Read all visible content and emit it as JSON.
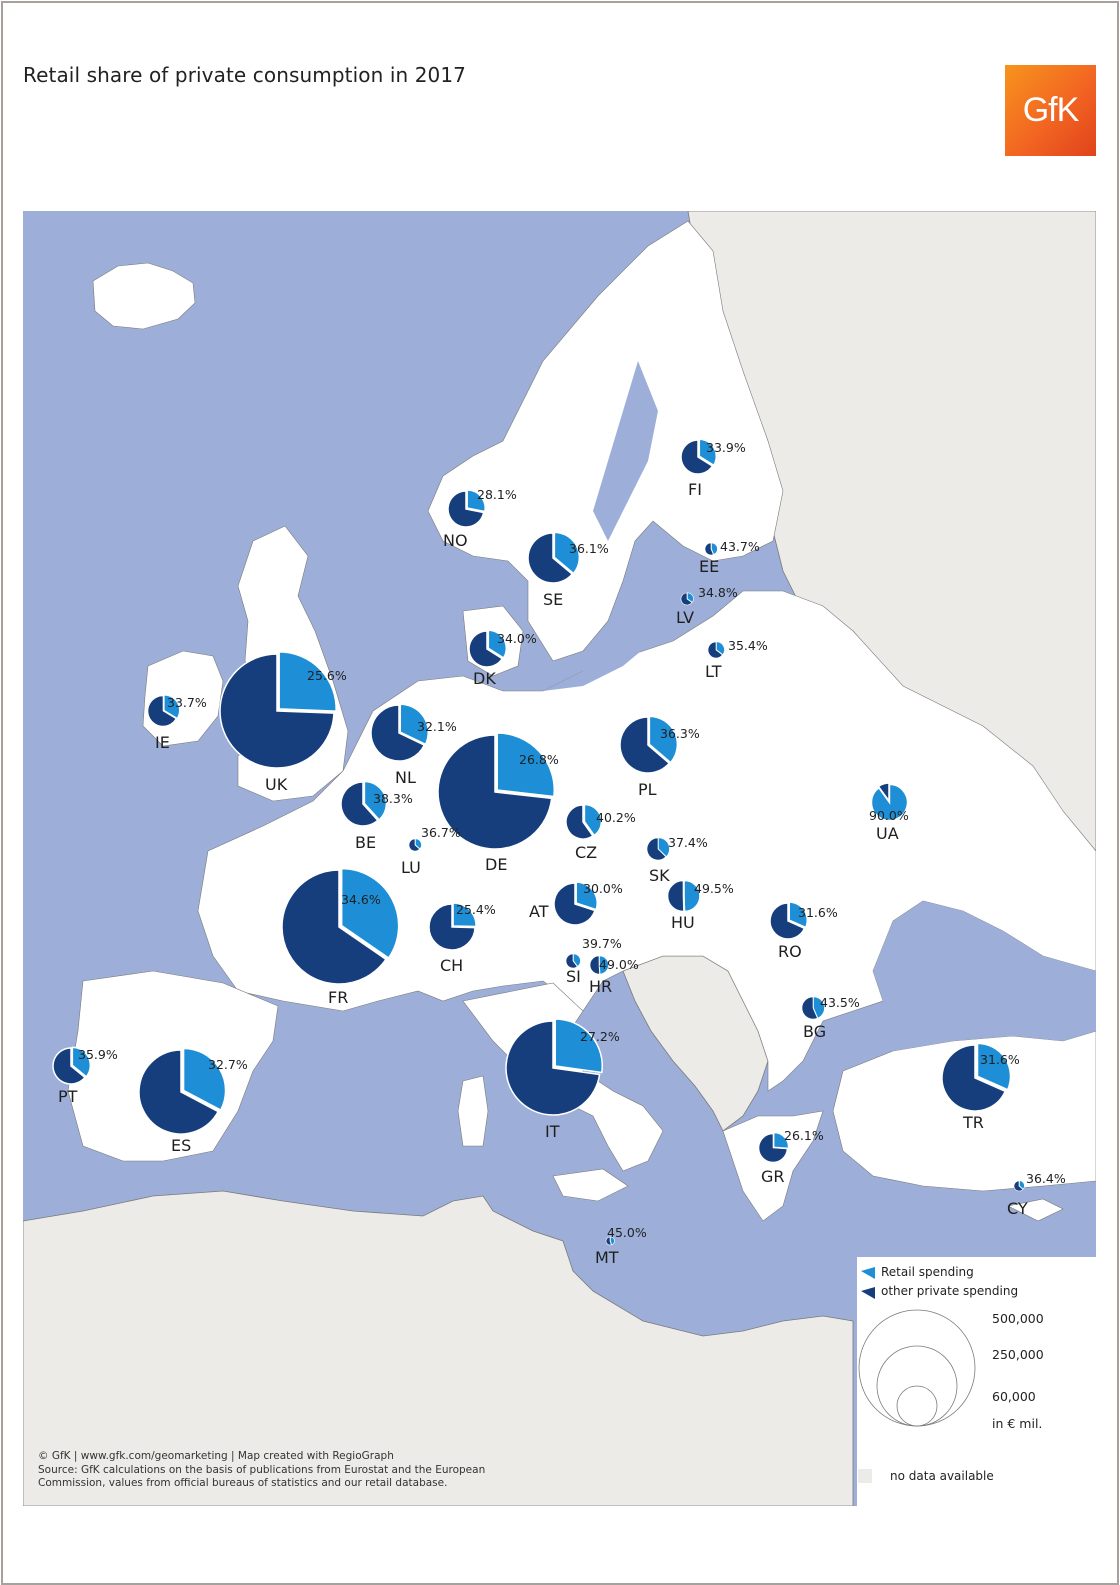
{
  "title": "Retail share of private consumption in 2017",
  "logo": {
    "text": "GfK"
  },
  "colors": {
    "sea": "#9dafd9",
    "land": "#ffffff",
    "nodata_land": "#ecebe8",
    "retail": "#1e8fd6",
    "other": "#163e7d",
    "border": "#7a7a7a"
  },
  "legend": {
    "retail_label": "Retail spending",
    "other_label": "other private spending",
    "size_values": [
      "500,000",
      "250,000",
      "60,000"
    ],
    "unit": "in € mil.",
    "nodata_label": "no data available"
  },
  "credits": {
    "line1": "© GfK | www.gfk.com/geomarketing | Map created with RegioGraph",
    "line2": "Source: GfK calculations on the basis of publications from Eurostat and the European Commission, values from official bureaus of statistics and our retail database."
  },
  "countries": [
    {
      "code": "NO",
      "share": 28.1,
      "label": "28.1%"
    },
    {
      "code": "FI",
      "share": 33.9,
      "label": "33.9%"
    },
    {
      "code": "SE",
      "share": 36.1,
      "label": "36.1%"
    },
    {
      "code": "EE",
      "share": 43.7,
      "label": "43.7%"
    },
    {
      "code": "LV",
      "share": 34.8,
      "label": "34.8%"
    },
    {
      "code": "DK",
      "share": 34.0,
      "label": "34.0%"
    },
    {
      "code": "LT",
      "share": 35.4,
      "label": "35.4%"
    },
    {
      "code": "IE",
      "share": 33.7,
      "label": "33.7%"
    },
    {
      "code": "UK",
      "share": 25.6,
      "label": "25.6%"
    },
    {
      "code": "NL",
      "share": 32.1,
      "label": "32.1%"
    },
    {
      "code": "PL",
      "share": 36.3,
      "label": "36.3%"
    },
    {
      "code": "DE",
      "share": 26.8,
      "label": "26.8%"
    },
    {
      "code": "BE",
      "share": 38.3,
      "label": "38.3%"
    },
    {
      "code": "LU",
      "share": 36.7,
      "label": "36.7%"
    },
    {
      "code": "CZ",
      "share": 40.2,
      "label": "40.2%"
    },
    {
      "code": "UA",
      "share": 90.0,
      "label": "90.0%"
    },
    {
      "code": "SK",
      "share": 37.4,
      "label": "37.4%"
    },
    {
      "code": "HU",
      "share": 49.5,
      "label": "49.5%"
    },
    {
      "code": "AT",
      "share": 30.0,
      "label": "30.0%"
    },
    {
      "code": "FR",
      "share": 34.6,
      "label": "34.6%"
    },
    {
      "code": "CH",
      "share": 25.4,
      "label": "25.4%"
    },
    {
      "code": "RO",
      "share": 31.6,
      "label": "31.6%"
    },
    {
      "code": "SI",
      "share": 39.7,
      "label": "39.7%"
    },
    {
      "code": "HR",
      "share": 49.0,
      "label": "49.0%"
    },
    {
      "code": "BG",
      "share": 43.5,
      "label": "43.5%"
    },
    {
      "code": "PT",
      "share": 35.9,
      "label": "35.9%"
    },
    {
      "code": "ES",
      "share": 32.7,
      "label": "32.7%"
    },
    {
      "code": "IT",
      "share": 27.2,
      "label": "27.2%"
    },
    {
      "code": "TR",
      "share": 31.6,
      "label": "31.6%"
    },
    {
      "code": "GR",
      "share": 26.1,
      "label": "26.1%"
    },
    {
      "code": "CY",
      "share": 36.4,
      "label": "36.4%"
    },
    {
      "code": "MT",
      "share": 45.0,
      "label": "45.0%"
    }
  ]
}
